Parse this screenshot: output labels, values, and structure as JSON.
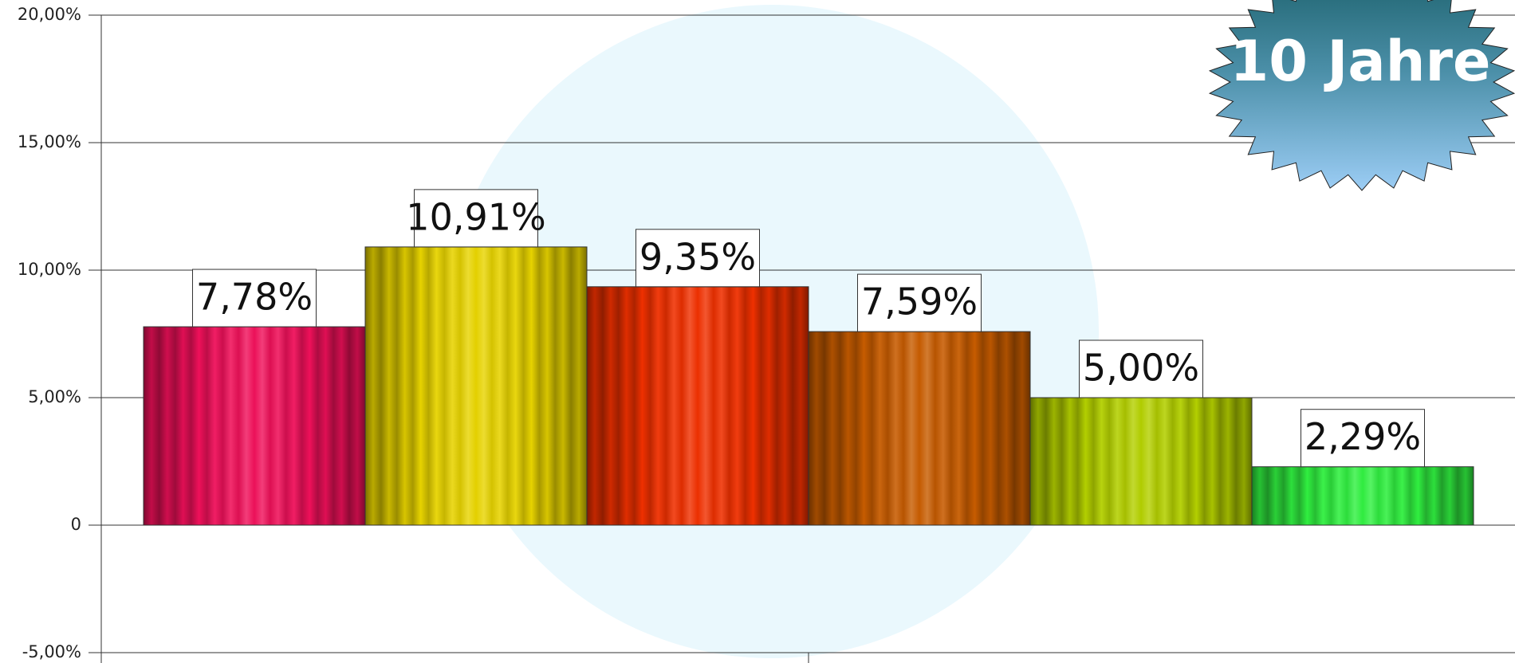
{
  "chart_data": {
    "type": "bar",
    "values": [
      7.78,
      10.91,
      9.35,
      7.59,
      5.0,
      2.29
    ],
    "value_labels": [
      "7,78%",
      "10,91%",
      "9,35%",
      "7,59%",
      "5,00%",
      "2,29%"
    ],
    "colors": [
      "#f0105a",
      "#e8d400",
      "#f03000",
      "#c85c00",
      "#b4d000",
      "#30f040"
    ],
    "ylim": [
      -5,
      20
    ],
    "yticks": [
      {
        "value": -5,
        "label": "-5,00%"
      },
      0,
      {
        "value": 5,
        "label": "5,00%"
      },
      {
        "value": 10,
        "label": "10,00%"
      },
      {
        "value": 15,
        "label": "15,00%"
      },
      {
        "value": 20,
        "label": "20,00%"
      }
    ],
    "grid": true,
    "annotation": "10 Jahre"
  }
}
